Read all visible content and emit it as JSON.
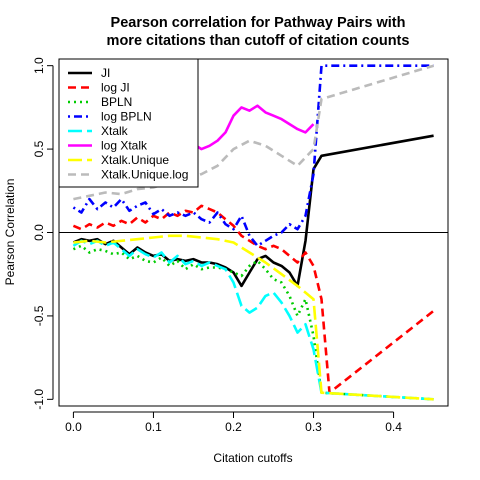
{
  "chart_data": {
    "type": "line",
    "title": [
      "Pearson correlation for Pathway Pairs with",
      "more citations than cutoff of citation counts"
    ],
    "xlabel": "Citation cutoffs",
    "ylabel": "Pearson Correlation",
    "xlim": [
      -0.018,
      0.468
    ],
    "ylim": [
      -1.04,
      1.04
    ],
    "x_ticks": [
      {
        "value": 0.0,
        "label": "0.0"
      },
      {
        "value": 0.1,
        "label": "0.1"
      },
      {
        "value": 0.2,
        "label": "0.2"
      },
      {
        "value": 0.3,
        "label": "0.3"
      },
      {
        "value": 0.4,
        "label": "0.4"
      }
    ],
    "y_ticks": [
      {
        "value": -1.0,
        "label": "-1.0"
      },
      {
        "value": -0.5,
        "label": "-0.5"
      },
      {
        "value": 0.0,
        "label": "0.0"
      },
      {
        "value": 0.5,
        "label": "0.5"
      },
      {
        "value": 1.0,
        "label": "1.0"
      }
    ],
    "reference_line_y": 0,
    "legend_position": "top-left",
    "series": [
      {
        "name": "JI",
        "color": "#000000",
        "dash": "solid",
        "points": [
          [
            0.0,
            -0.06
          ],
          [
            0.01,
            -0.04
          ],
          [
            0.02,
            -0.05
          ],
          [
            0.03,
            -0.04
          ],
          [
            0.04,
            -0.07
          ],
          [
            0.05,
            -0.05
          ],
          [
            0.06,
            -0.09
          ],
          [
            0.07,
            -0.13
          ],
          [
            0.08,
            -0.09
          ],
          [
            0.09,
            -0.12
          ],
          [
            0.1,
            -0.14
          ],
          [
            0.11,
            -0.13
          ],
          [
            0.12,
            -0.17
          ],
          [
            0.13,
            -0.16
          ],
          [
            0.14,
            -0.17
          ],
          [
            0.15,
            -0.16
          ],
          [
            0.16,
            -0.18
          ],
          [
            0.17,
            -0.18
          ],
          [
            0.18,
            -0.19
          ],
          [
            0.19,
            -0.21
          ],
          [
            0.2,
            -0.24
          ],
          [
            0.21,
            -0.32
          ],
          [
            0.22,
            -0.24
          ],
          [
            0.23,
            -0.16
          ],
          [
            0.24,
            -0.14
          ],
          [
            0.25,
            -0.18
          ],
          [
            0.26,
            -0.2
          ],
          [
            0.27,
            -0.24
          ],
          [
            0.28,
            -0.32
          ],
          [
            0.29,
            -0.05
          ],
          [
            0.3,
            0.38
          ],
          [
            0.31,
            0.46
          ],
          [
            0.45,
            0.58
          ]
        ]
      },
      {
        "name": "log JI",
        "color": "#ff0000",
        "dash": "dashed",
        "points": [
          [
            0.0,
            0.04
          ],
          [
            0.01,
            0.02
          ],
          [
            0.02,
            0.05
          ],
          [
            0.03,
            0.03
          ],
          [
            0.04,
            0.06
          ],
          [
            0.05,
            0.04
          ],
          [
            0.06,
            0.07
          ],
          [
            0.07,
            0.05
          ],
          [
            0.08,
            0.09
          ],
          [
            0.09,
            0.06
          ],
          [
            0.1,
            0.1
          ],
          [
            0.11,
            0.08
          ],
          [
            0.12,
            0.12
          ],
          [
            0.13,
            0.1
          ],
          [
            0.14,
            0.13
          ],
          [
            0.15,
            0.12
          ],
          [
            0.16,
            0.16
          ],
          [
            0.17,
            0.14
          ],
          [
            0.18,
            0.12
          ],
          [
            0.19,
            0.08
          ],
          [
            0.2,
            0.04
          ],
          [
            0.21,
            -0.02
          ],
          [
            0.22,
            -0.05
          ],
          [
            0.23,
            -0.08
          ],
          [
            0.24,
            -0.1
          ],
          [
            0.25,
            -0.08
          ],
          [
            0.26,
            -0.1
          ],
          [
            0.27,
            -0.14
          ],
          [
            0.28,
            -0.18
          ],
          [
            0.29,
            -0.12
          ],
          [
            0.3,
            -0.2
          ],
          [
            0.31,
            -0.4
          ],
          [
            0.32,
            -0.96
          ],
          [
            0.45,
            -0.47
          ]
        ]
      },
      {
        "name": "BPLN",
        "color": "#00cc00",
        "dash": "dotted",
        "points": [
          [
            0.0,
            -0.1
          ],
          [
            0.01,
            -0.08
          ],
          [
            0.02,
            -0.12
          ],
          [
            0.03,
            -0.1
          ],
          [
            0.04,
            -0.11
          ],
          [
            0.05,
            -0.13
          ],
          [
            0.06,
            -0.12
          ],
          [
            0.07,
            -0.16
          ],
          [
            0.08,
            -0.14
          ],
          [
            0.09,
            -0.17
          ],
          [
            0.1,
            -0.18
          ],
          [
            0.11,
            -0.15
          ],
          [
            0.12,
            -0.2
          ],
          [
            0.13,
            -0.17
          ],
          [
            0.14,
            -0.22
          ],
          [
            0.15,
            -0.19
          ],
          [
            0.16,
            -0.22
          ],
          [
            0.17,
            -0.21
          ],
          [
            0.18,
            -0.21
          ],
          [
            0.19,
            -0.22
          ],
          [
            0.2,
            -0.24
          ],
          [
            0.21,
            -0.26
          ],
          [
            0.22,
            -0.2
          ],
          [
            0.23,
            -0.17
          ],
          [
            0.24,
            -0.22
          ],
          [
            0.25,
            -0.28
          ],
          [
            0.26,
            -0.3
          ],
          [
            0.27,
            -0.38
          ],
          [
            0.28,
            -0.5
          ],
          [
            0.29,
            -0.4
          ],
          [
            0.3,
            -0.62
          ],
          [
            0.31,
            -0.96
          ],
          [
            0.45,
            -1.0
          ]
        ]
      },
      {
        "name": "log BPLN",
        "color": "#0000ff",
        "dash": "dotdash",
        "points": [
          [
            0.0,
            0.15
          ],
          [
            0.01,
            0.12
          ],
          [
            0.02,
            0.2
          ],
          [
            0.03,
            0.14
          ],
          [
            0.04,
            0.18
          ],
          [
            0.05,
            0.15
          ],
          [
            0.06,
            0.2
          ],
          [
            0.07,
            0.13
          ],
          [
            0.08,
            0.16
          ],
          [
            0.09,
            0.18
          ],
          [
            0.1,
            0.11
          ],
          [
            0.11,
            0.14
          ],
          [
            0.12,
            0.1
          ],
          [
            0.13,
            0.12
          ],
          [
            0.14,
            0.1
          ],
          [
            0.15,
            0.12
          ],
          [
            0.16,
            0.08
          ],
          [
            0.17,
            0.06
          ],
          [
            0.18,
            0.12
          ],
          [
            0.19,
            0.05
          ],
          [
            0.2,
            0.02
          ],
          [
            0.21,
            0.1
          ],
          [
            0.22,
            -0.02
          ],
          [
            0.23,
            -0.08
          ],
          [
            0.24,
            -0.05
          ],
          [
            0.25,
            -0.02
          ],
          [
            0.26,
            0.0
          ],
          [
            0.27,
            0.05
          ],
          [
            0.28,
            0.02
          ],
          [
            0.29,
            0.1
          ],
          [
            0.3,
            0.35
          ],
          [
            0.31,
            1.0
          ],
          [
            0.45,
            1.0
          ]
        ]
      },
      {
        "name": "Xtalk",
        "color": "#00ffff",
        "dash": "longdash",
        "points": [
          [
            0.0,
            -0.08
          ],
          [
            0.01,
            -0.05
          ],
          [
            0.02,
            -0.07
          ],
          [
            0.03,
            -0.05
          ],
          [
            0.04,
            -0.08
          ],
          [
            0.05,
            -0.06
          ],
          [
            0.06,
            -0.1
          ],
          [
            0.07,
            -0.14
          ],
          [
            0.08,
            -0.1
          ],
          [
            0.09,
            -0.13
          ],
          [
            0.1,
            -0.15
          ],
          [
            0.11,
            -0.12
          ],
          [
            0.12,
            -0.18
          ],
          [
            0.13,
            -0.14
          ],
          [
            0.14,
            -0.19
          ],
          [
            0.15,
            -0.17
          ],
          [
            0.16,
            -0.2
          ],
          [
            0.17,
            -0.18
          ],
          [
            0.18,
            -0.2
          ],
          [
            0.19,
            -0.22
          ],
          [
            0.2,
            -0.3
          ],
          [
            0.21,
            -0.44
          ],
          [
            0.22,
            -0.48
          ],
          [
            0.23,
            -0.45
          ],
          [
            0.24,
            -0.38
          ],
          [
            0.25,
            -0.36
          ],
          [
            0.26,
            -0.42
          ],
          [
            0.27,
            -0.5
          ],
          [
            0.28,
            -0.6
          ],
          [
            0.29,
            -0.55
          ],
          [
            0.3,
            -0.7
          ],
          [
            0.31,
            -0.96
          ],
          [
            0.45,
            -1.0
          ]
        ]
      },
      {
        "name": "log Xtalk",
        "color": "#ff00ff",
        "dash": "solid",
        "points": [
          [
            0.0,
            0.28
          ],
          [
            0.01,
            0.3
          ],
          [
            0.02,
            0.32
          ],
          [
            0.03,
            0.38
          ],
          [
            0.04,
            0.36
          ],
          [
            0.05,
            0.42
          ],
          [
            0.06,
            0.38
          ],
          [
            0.07,
            0.45
          ],
          [
            0.08,
            0.43
          ],
          [
            0.09,
            0.48
          ],
          [
            0.1,
            0.47
          ],
          [
            0.11,
            0.5
          ],
          [
            0.12,
            0.48
          ],
          [
            0.13,
            0.52
          ],
          [
            0.14,
            0.5
          ],
          [
            0.15,
            0.53
          ],
          [
            0.16,
            0.5
          ],
          [
            0.17,
            0.52
          ],
          [
            0.18,
            0.55
          ],
          [
            0.19,
            0.6
          ],
          [
            0.2,
            0.7
          ],
          [
            0.21,
            0.75
          ],
          [
            0.22,
            0.73
          ],
          [
            0.23,
            0.76
          ],
          [
            0.24,
            0.72
          ],
          [
            0.25,
            0.7
          ],
          [
            0.26,
            0.68
          ],
          [
            0.27,
            0.65
          ],
          [
            0.28,
            0.62
          ],
          [
            0.29,
            0.6
          ],
          [
            0.3,
            0.65
          ]
        ]
      },
      {
        "name": "Xtalk.Unique",
        "color": "#ffff00",
        "dash": "longdash",
        "points": [
          [
            0.0,
            -0.06
          ],
          [
            0.02,
            -0.05
          ],
          [
            0.04,
            -0.06
          ],
          [
            0.06,
            -0.05
          ],
          [
            0.08,
            -0.04
          ],
          [
            0.1,
            -0.03
          ],
          [
            0.12,
            -0.02
          ],
          [
            0.14,
            -0.02
          ],
          [
            0.16,
            -0.03
          ],
          [
            0.18,
            -0.04
          ],
          [
            0.2,
            -0.06
          ],
          [
            0.22,
            -0.12
          ],
          [
            0.24,
            -0.18
          ],
          [
            0.26,
            -0.25
          ],
          [
            0.28,
            -0.32
          ],
          [
            0.3,
            -0.4
          ],
          [
            0.31,
            -0.96
          ],
          [
            0.45,
            -1.0
          ]
        ]
      },
      {
        "name": "Xtalk.Unique.log",
        "color": "#bbbbbb",
        "dash": "dashed",
        "points": [
          [
            0.0,
            0.2
          ],
          [
            0.02,
            0.22
          ],
          [
            0.04,
            0.24
          ],
          [
            0.06,
            0.23
          ],
          [
            0.08,
            0.26
          ],
          [
            0.1,
            0.27
          ],
          [
            0.12,
            0.3
          ],
          [
            0.14,
            0.32
          ],
          [
            0.16,
            0.35
          ],
          [
            0.18,
            0.4
          ],
          [
            0.2,
            0.5
          ],
          [
            0.22,
            0.55
          ],
          [
            0.24,
            0.52
          ],
          [
            0.26,
            0.46
          ],
          [
            0.28,
            0.4
          ],
          [
            0.3,
            0.5
          ],
          [
            0.31,
            0.8
          ],
          [
            0.45,
            1.0
          ]
        ]
      }
    ]
  }
}
